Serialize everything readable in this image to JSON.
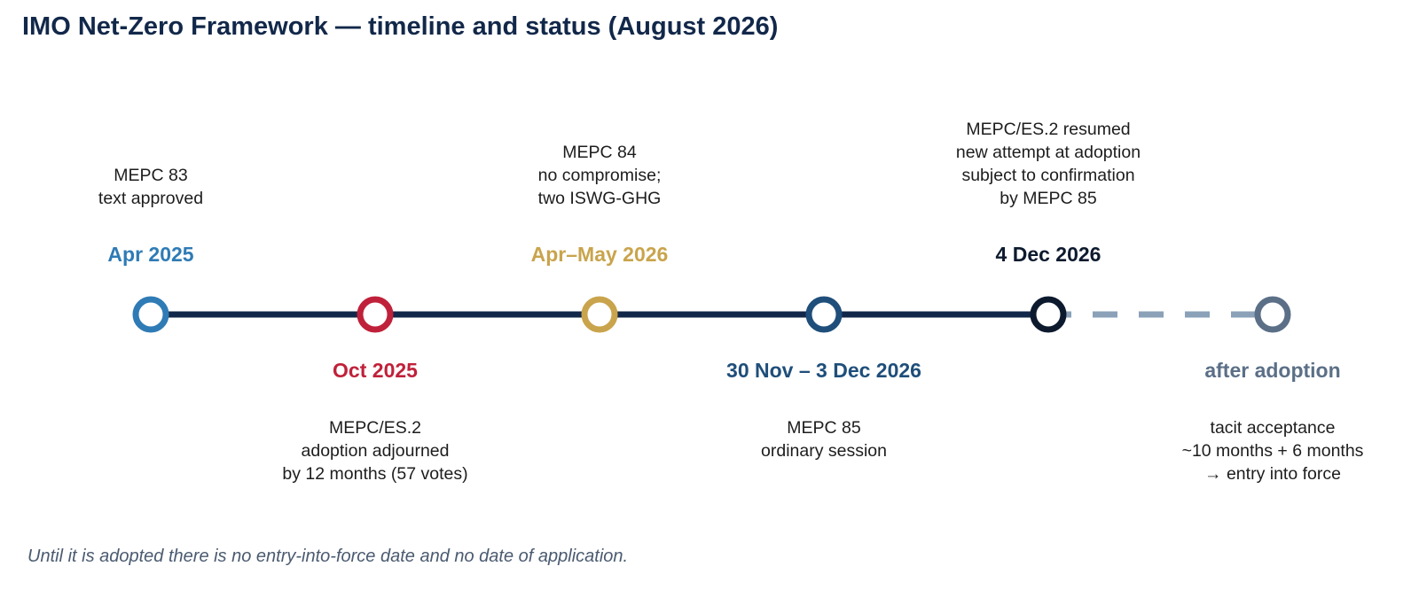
{
  "title": "IMO Net-Zero Framework — timeline and status (August 2026)",
  "colors": {
    "line": "#12284a",
    "dashed": "#8aa1b8"
  },
  "milestones": [
    {
      "date": "Apr 2025",
      "color": "#2f7bb5",
      "position": "above",
      "lines": [
        "MEPC 83",
        "text approved"
      ]
    },
    {
      "date": "Oct 2025",
      "color": "#c0213a",
      "position": "below",
      "lines": [
        "MEPC/ES.2",
        "adoption adjourned",
        "by 12 months (57 votes)"
      ]
    },
    {
      "date": "Apr–May 2026",
      "color": "#c9a44c",
      "position": "above",
      "lines": [
        "MEPC 84",
        "no compromise;",
        "two ISWG-GHG"
      ]
    },
    {
      "date": "30 Nov – 3 Dec 2026",
      "color": "#1f4e7a",
      "position": "below",
      "lines": [
        "MEPC 85",
        "ordinary session"
      ]
    },
    {
      "date": "4 Dec 2026",
      "color": "#0d1a2e",
      "position": "above",
      "lines": [
        "MEPC/ES.2 resumed",
        "new attempt at adoption",
        "subject to confirmation",
        "by MEPC 85"
      ]
    },
    {
      "date": "after adoption",
      "color": "#5b6f87",
      "position": "below",
      "lines": [
        "tacit acceptance",
        "~10 months + 6 months",
        "→ entry into force"
      ]
    }
  ],
  "footnote": "Until it is adopted there is no entry-into-force date and no date of application."
}
